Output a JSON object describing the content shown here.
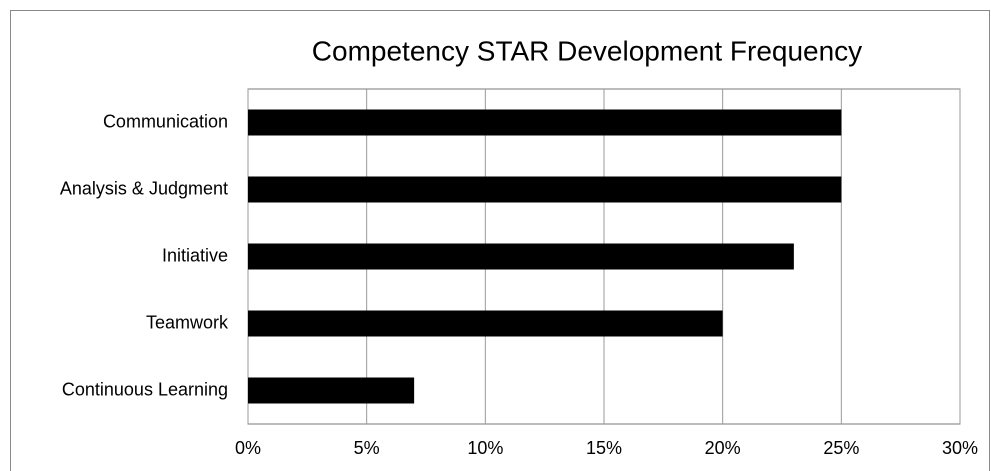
{
  "chart_data": {
    "type": "bar",
    "orientation": "horizontal",
    "title": "Competency STAR Development Frequency",
    "categories": [
      "Communication",
      "Analysis & Judgment",
      "Initiative",
      "Teamwork",
      "Continuous Learning"
    ],
    "values": [
      25,
      25,
      23,
      20,
      7
    ],
    "color": "#000000",
    "xlim": [
      0,
      30
    ],
    "xticks": [
      {
        "value": 0,
        "label": "0%"
      },
      {
        "value": 5,
        "label": "5%"
      },
      {
        "value": 10,
        "label": "10%"
      },
      {
        "value": 15,
        "label": "15%"
      },
      {
        "value": 20,
        "label": "20%"
      },
      {
        "value": 25,
        "label": "25%"
      },
      {
        "value": 30,
        "label": "30%"
      }
    ],
    "grid": true
  }
}
